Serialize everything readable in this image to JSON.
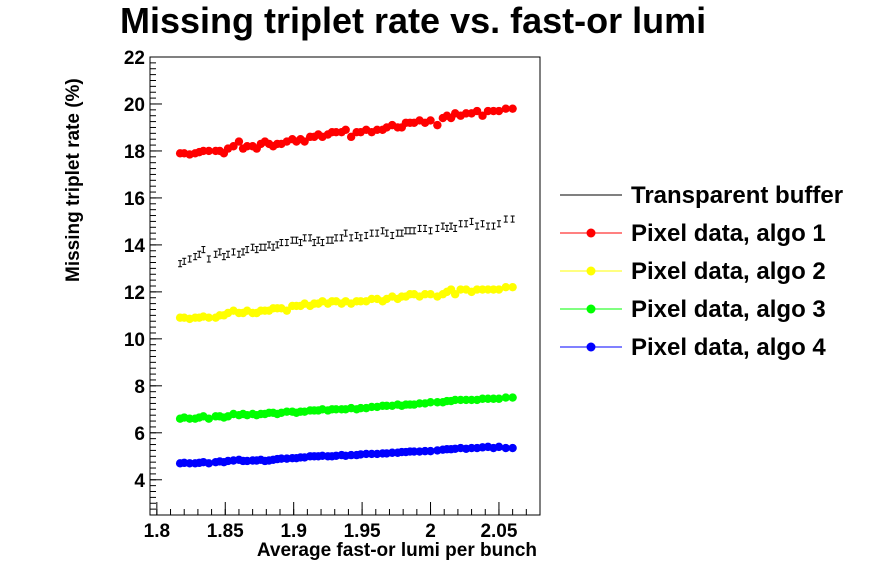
{
  "chart_data": {
    "type": "scatter",
    "title": "Missing triplet rate vs. fast-or lumi",
    "xlabel": "Average fast-or lumi per bunch",
    "ylabel": "Missing triplet rate (%)",
    "xlim": [
      1.795,
      2.08
    ],
    "ylim": [
      2.5,
      22
    ],
    "x_ticks": [
      1.8,
      1.85,
      1.9,
      1.95,
      2.0,
      2.05
    ],
    "x_tick_labels": [
      "1.8",
      "1.85",
      "1.9",
      "1.95",
      "2",
      "2.05"
    ],
    "y_ticks": [
      4,
      6,
      8,
      10,
      12,
      14,
      16,
      18,
      20,
      22
    ],
    "y_tick_labels": [
      "4",
      "6",
      "8",
      "10",
      "12",
      "14",
      "16",
      "18",
      "20",
      "22"
    ],
    "grid": false,
    "legend_position": "right",
    "x": [
      1.817,
      1.82,
      1.824,
      1.828,
      1.831,
      1.834,
      1.838,
      1.843,
      1.846,
      1.849,
      1.852,
      1.856,
      1.86,
      1.863,
      1.866,
      1.87,
      1.873,
      1.876,
      1.879,
      1.882,
      1.885,
      1.888,
      1.891,
      1.895,
      1.899,
      1.902,
      1.905,
      1.908,
      1.912,
      1.915,
      1.918,
      1.921,
      1.925,
      1.928,
      1.931,
      1.935,
      1.938,
      1.942,
      1.946,
      1.949,
      1.953,
      1.957,
      1.961,
      1.965,
      1.968,
      1.972,
      1.976,
      1.979,
      1.982,
      1.985,
      1.988,
      1.992,
      1.996,
      2.0,
      2.005,
      2.009,
      2.012,
      2.015,
      2.018,
      2.022,
      2.026,
      2.03,
      2.034,
      2.038,
      2.042,
      2.046,
      2.05,
      2.055,
      2.06
    ],
    "series": [
      {
        "name": "Transparent buffer",
        "color": "#000000",
        "marker": "errorbar",
        "error": 0.13,
        "values": [
          13.2,
          13.3,
          13.4,
          13.5,
          13.6,
          13.8,
          13.4,
          13.6,
          13.7,
          13.5,
          13.6,
          13.7,
          13.6,
          13.7,
          13.8,
          13.9,
          13.8,
          13.9,
          13.9,
          14.0,
          13.9,
          14.0,
          14.1,
          14.1,
          14.2,
          14.2,
          14.1,
          14.3,
          14.3,
          14.1,
          14.2,
          14.1,
          14.2,
          14.2,
          14.3,
          14.3,
          14.5,
          14.3,
          14.4,
          14.3,
          14.4,
          14.5,
          14.5,
          14.6,
          14.5,
          14.4,
          14.5,
          14.5,
          14.6,
          14.6,
          14.6,
          14.7,
          14.7,
          14.6,
          14.7,
          14.8,
          14.7,
          14.8,
          14.7,
          14.9,
          14.9,
          15.0,
          14.8,
          14.9,
          14.8,
          14.8,
          14.9,
          15.1,
          15.1
        ]
      },
      {
        "name": "Pixel data, algo 1",
        "color": "#ff0000",
        "marker": "circle",
        "values": [
          17.9,
          17.9,
          17.85,
          17.9,
          17.95,
          18.0,
          18.0,
          18.0,
          18.0,
          17.9,
          18.1,
          18.2,
          18.4,
          18.1,
          18.2,
          18.2,
          18.1,
          18.3,
          18.4,
          18.3,
          18.2,
          18.3,
          18.3,
          18.4,
          18.5,
          18.4,
          18.5,
          18.4,
          18.6,
          18.6,
          18.7,
          18.6,
          18.7,
          18.8,
          18.8,
          18.8,
          18.9,
          18.6,
          18.8,
          18.8,
          18.9,
          18.8,
          18.9,
          18.9,
          19.0,
          19.1,
          19.0,
          19.0,
          19.2,
          19.2,
          19.2,
          19.3,
          19.2,
          19.3,
          19.1,
          19.4,
          19.5,
          19.4,
          19.6,
          19.5,
          19.6,
          19.6,
          19.7,
          19.5,
          19.7,
          19.7,
          19.7,
          19.8,
          19.8
        ]
      },
      {
        "name": "Pixel data, algo 2",
        "color": "#ffff00",
        "marker": "circle",
        "values": [
          10.9,
          10.9,
          10.85,
          10.9,
          10.9,
          10.95,
          10.9,
          10.9,
          11.0,
          11.0,
          11.1,
          11.2,
          11.1,
          11.1,
          11.2,
          11.1,
          11.1,
          11.2,
          11.2,
          11.2,
          11.3,
          11.3,
          11.3,
          11.2,
          11.4,
          11.4,
          11.4,
          11.5,
          11.4,
          11.5,
          11.5,
          11.6,
          11.5,
          11.6,
          11.6,
          11.5,
          11.6,
          11.5,
          11.6,
          11.6,
          11.6,
          11.7,
          11.7,
          11.6,
          11.7,
          11.8,
          11.7,
          11.8,
          11.8,
          11.9,
          11.9,
          11.8,
          11.9,
          11.9,
          11.8,
          11.9,
          12.0,
          12.1,
          11.9,
          12.1,
          12.1,
          12.0,
          12.1,
          12.1,
          12.1,
          12.1,
          12.1,
          12.2,
          12.2
        ]
      },
      {
        "name": "Pixel data, algo 3",
        "color": "#00ff00",
        "marker": "circle",
        "values": [
          6.6,
          6.65,
          6.6,
          6.6,
          6.65,
          6.7,
          6.6,
          6.7,
          6.7,
          6.65,
          6.7,
          6.8,
          6.75,
          6.8,
          6.75,
          6.8,
          6.75,
          6.8,
          6.8,
          6.85,
          6.85,
          6.8,
          6.85,
          6.9,
          6.9,
          6.85,
          6.9,
          6.9,
          6.95,
          6.95,
          6.95,
          7.0,
          6.95,
          7.0,
          7.0,
          7.0,
          7.0,
          7.05,
          7.0,
          7.05,
          7.05,
          7.1,
          7.1,
          7.15,
          7.15,
          7.15,
          7.2,
          7.15,
          7.2,
          7.2,
          7.2,
          7.25,
          7.25,
          7.3,
          7.3,
          7.3,
          7.35,
          7.35,
          7.4,
          7.4,
          7.4,
          7.4,
          7.4,
          7.45,
          7.45,
          7.45,
          7.45,
          7.5,
          7.5
        ]
      },
      {
        "name": "Pixel data, algo 4",
        "color": "#0000ff",
        "marker": "circle",
        "values": [
          4.7,
          4.72,
          4.7,
          4.7,
          4.72,
          4.75,
          4.7,
          4.75,
          4.78,
          4.75,
          4.8,
          4.82,
          4.85,
          4.8,
          4.8,
          4.82,
          4.82,
          4.85,
          4.8,
          4.82,
          4.85,
          4.88,
          4.9,
          4.9,
          4.92,
          4.92,
          4.95,
          4.95,
          5.0,
          5.0,
          5.0,
          5.02,
          5.0,
          5.0,
          5.02,
          5.05,
          5.02,
          5.05,
          5.05,
          5.08,
          5.1,
          5.1,
          5.1,
          5.12,
          5.12,
          5.15,
          5.15,
          5.18,
          5.18,
          5.2,
          5.2,
          5.2,
          5.22,
          5.22,
          5.25,
          5.28,
          5.3,
          5.3,
          5.32,
          5.35,
          5.32,
          5.35,
          5.35,
          5.38,
          5.4,
          5.35,
          5.4,
          5.35,
          5.35
        ]
      }
    ]
  }
}
